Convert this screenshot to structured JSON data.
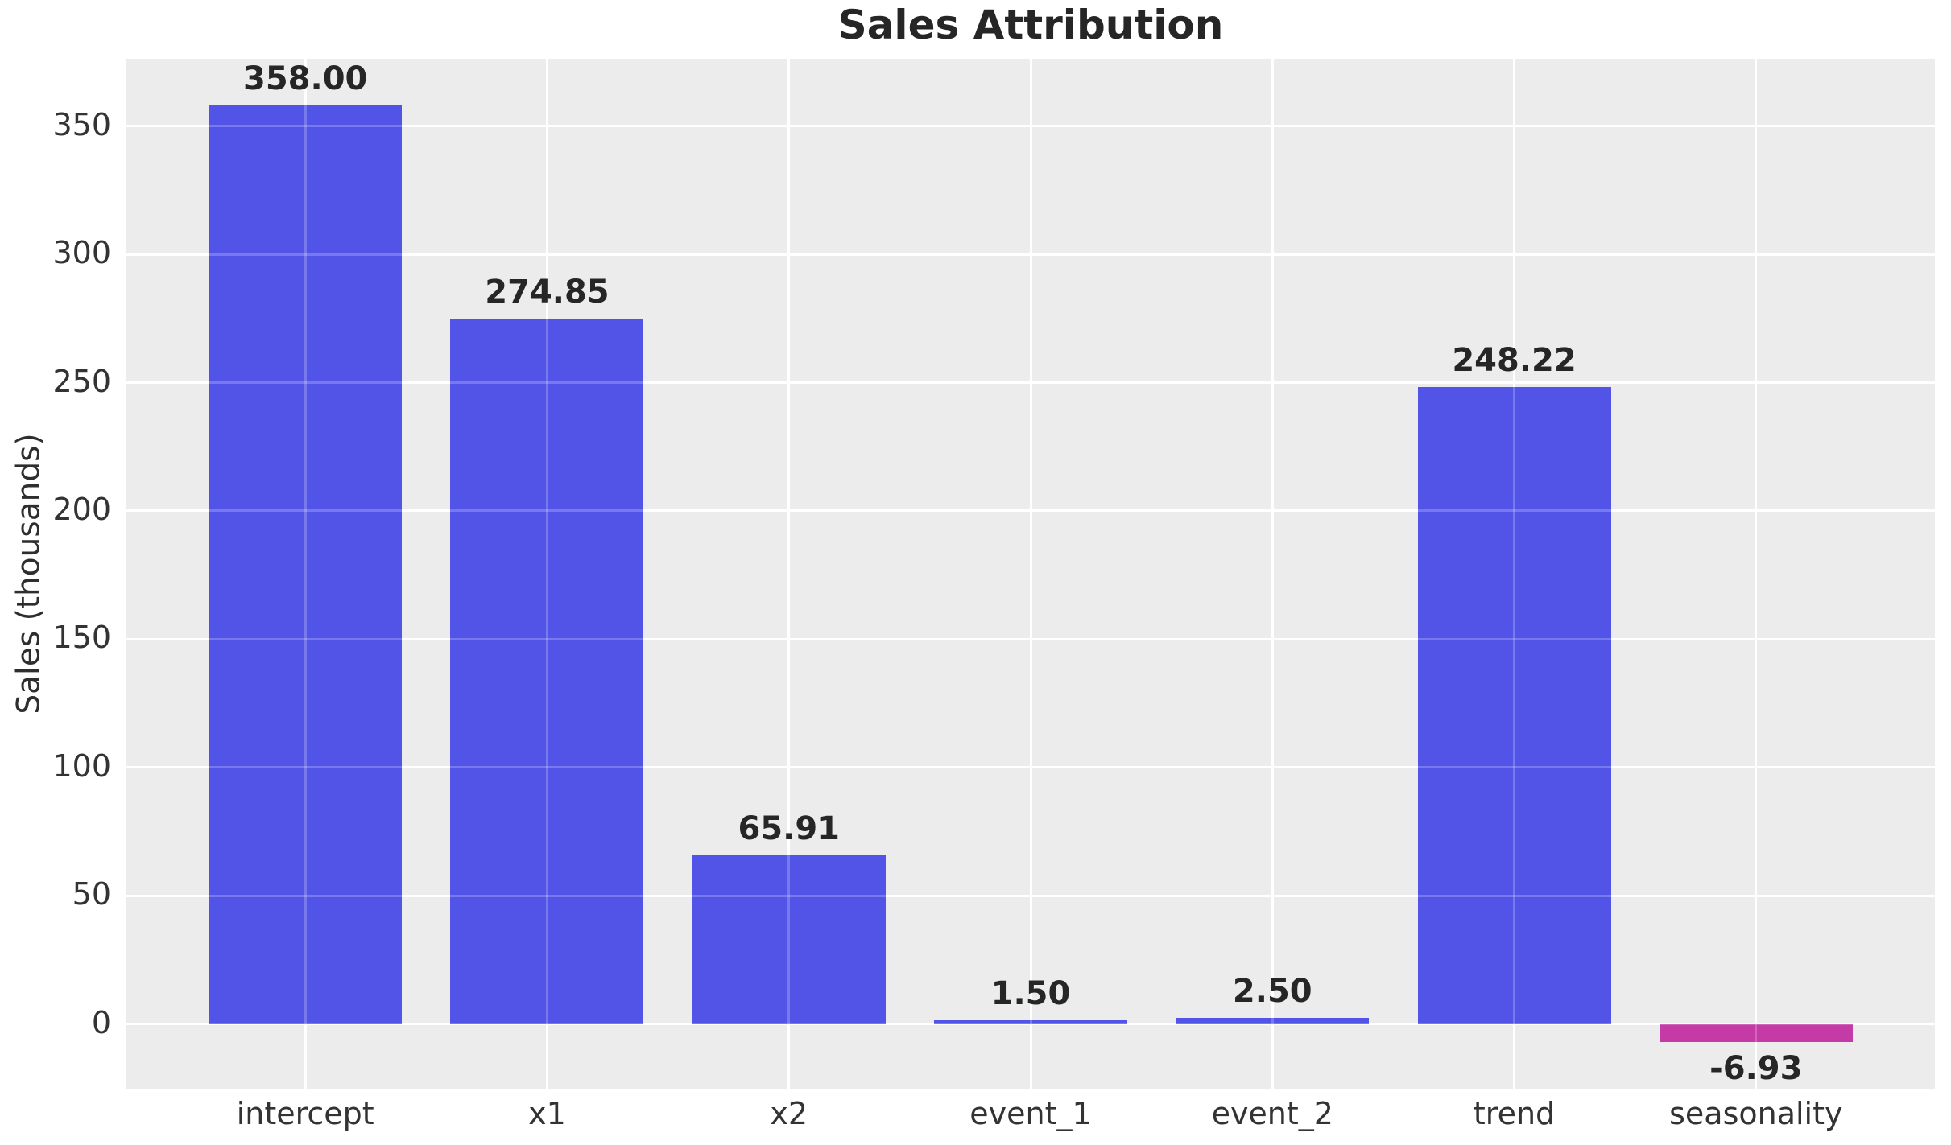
{
  "title": "Sales Attribution",
  "chart_data": {
    "type": "bar",
    "title": "Sales Attribution",
    "xlabel": "",
    "ylabel": "Sales (thousands)",
    "categories": [
      "intercept",
      "x1",
      "x2",
      "event_1",
      "event_2",
      "trend",
      "seasonality"
    ],
    "values": [
      358.0,
      274.85,
      65.91,
      1.5,
      2.5,
      248.22,
      -6.93
    ],
    "value_labels": [
      "358.00",
      "274.85",
      "65.91",
      "1.50",
      "2.50",
      "248.22",
      "-6.93"
    ],
    "bar_colors": [
      "#5254E8",
      "#5254E8",
      "#5254E8",
      "#5254E8",
      "#5254E8",
      "#5254E8",
      "#C43AA6"
    ],
    "positive_color": "#5254E8",
    "negative_color": "#C43AA6",
    "yticks": [
      0,
      50,
      100,
      150,
      200,
      250,
      300,
      350
    ],
    "ytick_labels": [
      "0",
      "50",
      "100",
      "150",
      "200",
      "250",
      "300",
      "350"
    ],
    "ylim": [
      -25.2,
      376.25
    ],
    "grid": true,
    "grid_color": "#FFFFFF",
    "plot_background": "#ECECEC",
    "figure_background": "#FFFFFF",
    "text_color": "#262626",
    "legend": false
  }
}
